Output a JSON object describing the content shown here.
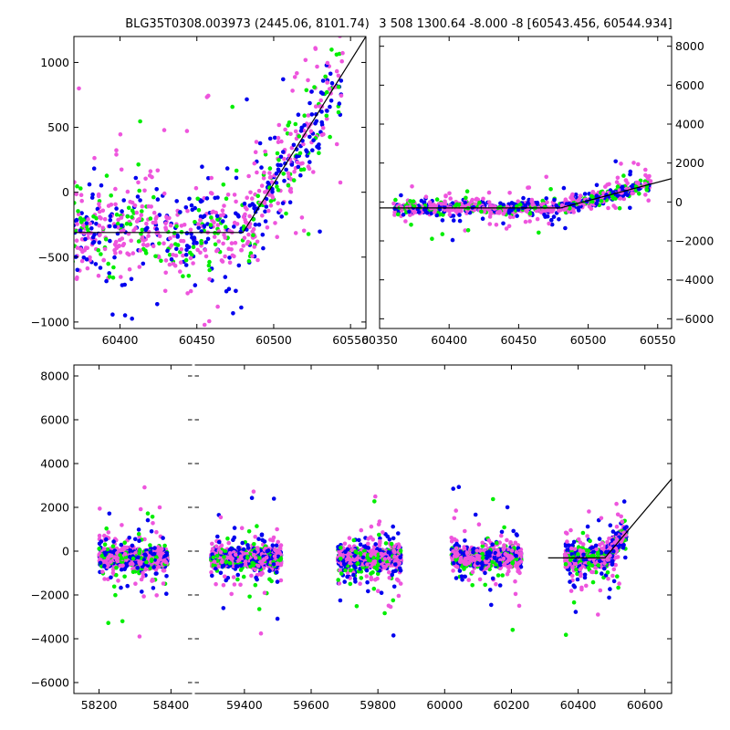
{
  "chart_data": [
    {
      "type": "scatter",
      "panel": "top-left zoom",
      "title": "BLG35T0308.003973 (2445.06, 8101.74)",
      "xlim": [
        60370,
        60560
      ],
      "ylim": [
        -1050,
        1200
      ],
      "xticks": [
        60400,
        60450,
        60500,
        60550
      ],
      "yticks": [
        -1000,
        -500,
        0,
        500,
        1000
      ],
      "ytick_labels": [
        "−1000",
        "−500",
        "0",
        "500",
        "1000"
      ],
      "y_axis_side": "left",
      "model_line": [
        [
          60370,
          -310
        ],
        [
          60480,
          -310
        ],
        [
          60560,
          1200
        ]
      ],
      "series_colors": [
        "#0000ee",
        "#00ee00",
        "#ee55dd"
      ]
    },
    {
      "type": "scatter",
      "panel": "top-right zoom",
      "title": "3 508 1300.64 -8.000 -8 [60543.456, 60544.934]",
      "xlim": [
        60350,
        60560
      ],
      "ylim": [
        -6500,
        8500
      ],
      "xticks": [
        60350,
        60400,
        60450,
        60500,
        60550
      ],
      "yticks": [
        -6000,
        -4000,
        -2000,
        0,
        2000,
        4000,
        6000,
        8000
      ],
      "ytick_labels": [
        "−6000",
        "−4000",
        "−2000",
        "0",
        "2000",
        "4000",
        "6000",
        "8000"
      ],
      "y_axis_side": "right",
      "model_line": [
        [
          60350,
          -310
        ],
        [
          60480,
          -310
        ],
        [
          60560,
          1200
        ]
      ],
      "series_colors": [
        "#0000ee",
        "#00ee00",
        "#ee55dd"
      ]
    },
    {
      "type": "scatter",
      "panel": "bottom full light curve (broken x axis)",
      "title": "",
      "ylim": [
        -6500,
        8500
      ],
      "xticks": [
        58200,
        58400,
        59400,
        59600,
        59800,
        60000,
        60200,
        60400,
        60600
      ],
      "yticks": [
        -6000,
        -4000,
        -2000,
        0,
        2000,
        4000,
        6000,
        8000
      ],
      "ytick_labels": [
        "−6000",
        "−4000",
        "−2000",
        "0",
        "2000",
        "4000",
        "6000",
        "8000"
      ],
      "y_axis_side": "left",
      "segments": [
        {
          "xlim": [
            58130,
            58460
          ]
        },
        {
          "xlim": [
            59250,
            60680
          ]
        }
      ],
      "seasons": [
        [
          58200,
          58390
        ],
        [
          59300,
          59510
        ],
        [
          59680,
          59870
        ],
        [
          60020,
          60230
        ],
        [
          60360,
          60545
        ]
      ],
      "model_line": [
        [
          60310,
          -310
        ],
        [
          60480,
          -310
        ],
        [
          60680,
          3300
        ]
      ],
      "series_colors": [
        "#0000ee",
        "#00ee00",
        "#ee55dd"
      ]
    }
  ]
}
